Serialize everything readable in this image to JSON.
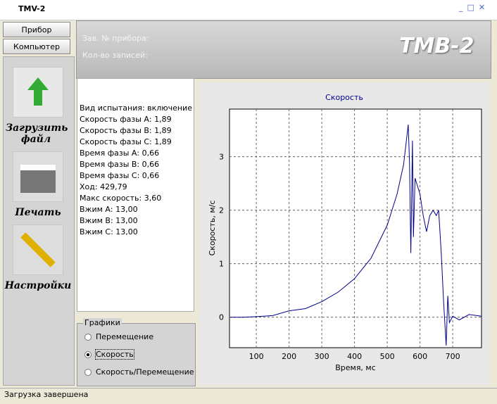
{
  "window": {
    "title": "TMV-2"
  },
  "sidebar": {
    "tabs": [
      "Прибор",
      "Компьютер"
    ],
    "actions": [
      "Загрузить файл",
      "Печать",
      "Настройки"
    ]
  },
  "header": {
    "fields": [
      "Зав. № прибора:",
      "Кол-во записей:"
    ],
    "logo": "TMB-2"
  },
  "info": {
    "lines": [
      "Вид испытания: включение",
      "Скорость фазы А: 1,89",
      "Скорость фазы В: 1,89",
      "Скорость фазы С: 1,89",
      "Время фазы А: 0,66",
      "Время фазы В: 0,66",
      "Время фазы С: 0,66",
      "Ход: 429,79",
      "Макс скорость: 3,60",
      "Вжим А: 13,00",
      "Вжим В: 13,00",
      "Вжим С: 13,00"
    ]
  },
  "graphs": {
    "title": "Графики",
    "options": [
      "Перемещение",
      "Скорость",
      "Скорость/Перемещение"
    ],
    "selected": 1
  },
  "status": "Загрузка завершена",
  "chart_data": {
    "type": "line",
    "title": "Скорость",
    "x_label": "Время, мс",
    "y_label": "Скорость, м/с",
    "color": "#00008b",
    "grid": true,
    "x": [
      20,
      60,
      100,
      150,
      200,
      250,
      300,
      350,
      400,
      450,
      500,
      530,
      550,
      564,
      568,
      572,
      577,
      580,
      585,
      600,
      610,
      620,
      630,
      640,
      650,
      657,
      665,
      672,
      680,
      685,
      690,
      700,
      720,
      750,
      788
    ],
    "values": [
      0,
      0,
      0.01,
      0.03,
      0.12,
      0.16,
      0.29,
      0.47,
      0.72,
      1.1,
      1.72,
      2.3,
      2.85,
      3.6,
      2.9,
      1.2,
      3.3,
      1.5,
      2.6,
      2.3,
      1.9,
      1.6,
      1.9,
      2.0,
      1.9,
      2.0,
      1.2,
      0.3,
      -0.53,
      0.4,
      -0.1,
      0.02,
      -0.05,
      0.05,
      0.02
    ],
    "xlim": [
      18,
      788
    ],
    "ylim": [
      -0.57,
      3.89
    ],
    "xticks": [
      100,
      200,
      300,
      400,
      500,
      600,
      700
    ],
    "yticks": [
      0,
      1,
      2,
      3
    ]
  }
}
